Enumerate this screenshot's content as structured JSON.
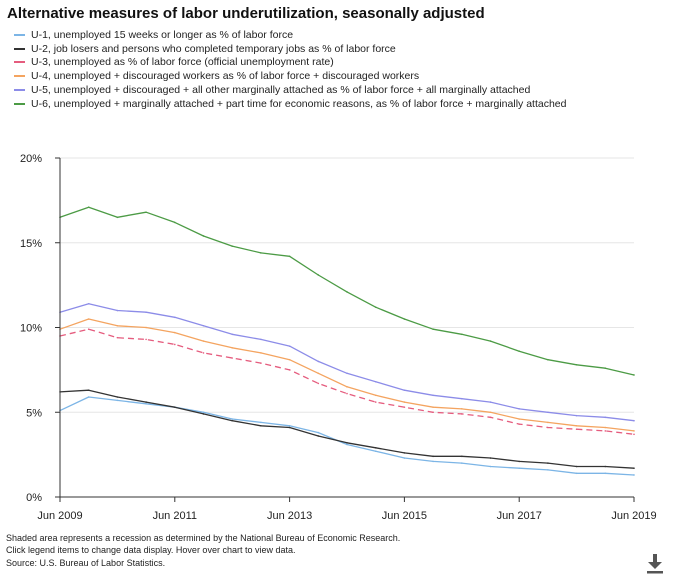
{
  "title": "Alternative measures of labor underutilization, seasonally adjusted",
  "legend": [
    {
      "name": "U-1, unemployed 15 weeks or longer as % of labor force",
      "color": "#7cb5e6",
      "dashed": false
    },
    {
      "name": "U-2, job losers and persons who completed temporary jobs as % of labor force",
      "color": "#333333",
      "dashed": false
    },
    {
      "name": "U-3, unemployed as % of labor force (official unemployment rate)",
      "color": "#e55c7e",
      "dashed": true
    },
    {
      "name": "U-4, unemployed + discouraged workers as % of labor force + discouraged workers",
      "color": "#f4a460",
      "dashed": false
    },
    {
      "name": "U-5, unemployed + discouraged + all other marginally attached as % of labor force + all marginally attached",
      "color": "#8c8ce8",
      "dashed": false
    },
    {
      "name": "U-6, unemployed + marginally attached + part time for economic reasons, as % of labor force + marginally attached",
      "color": "#4c9b45",
      "dashed": false
    }
  ],
  "chart_data": {
    "type": "line",
    "title": "Alternative measures of labor underutilization, seasonally adjusted",
    "x_range": [
      "Jun 2009",
      "Jun 2019"
    ],
    "x_ticks": [
      "Jun 2009",
      "Jun 2011",
      "Jun 2013",
      "Jun 2015",
      "Jun 2017",
      "Jun 2019"
    ],
    "y_ticks": [
      "0%",
      "5%",
      "10%",
      "15%",
      "20%"
    ],
    "ylim": [
      0,
      20
    ],
    "x": [
      "2009-06",
      "2009-12",
      "2010-06",
      "2010-12",
      "2011-06",
      "2011-12",
      "2012-06",
      "2012-12",
      "2013-06",
      "2013-12",
      "2014-06",
      "2014-12",
      "2015-06",
      "2015-12",
      "2016-06",
      "2016-12",
      "2017-06",
      "2017-12",
      "2018-06",
      "2018-12",
      "2019-06"
    ],
    "series": [
      {
        "name": "U-1",
        "values": [
          5.1,
          5.9,
          5.7,
          5.5,
          5.3,
          5.0,
          4.6,
          4.4,
          4.2,
          3.8,
          3.1,
          2.7,
          2.3,
          2.1,
          2.0,
          1.8,
          1.7,
          1.6,
          1.4,
          1.4,
          1.3
        ]
      },
      {
        "name": "U-2",
        "values": [
          6.2,
          6.3,
          5.9,
          5.6,
          5.3,
          4.9,
          4.5,
          4.2,
          4.1,
          3.6,
          3.2,
          2.9,
          2.6,
          2.4,
          2.4,
          2.3,
          2.1,
          2.0,
          1.8,
          1.8,
          1.7
        ]
      },
      {
        "name": "U-3",
        "values": [
          9.5,
          9.9,
          9.4,
          9.3,
          9.0,
          8.5,
          8.2,
          7.9,
          7.5,
          6.7,
          6.1,
          5.6,
          5.3,
          5.0,
          4.9,
          4.7,
          4.3,
          4.1,
          4.0,
          3.9,
          3.7
        ]
      },
      {
        "name": "U-4",
        "values": [
          9.9,
          10.5,
          10.1,
          10.0,
          9.7,
          9.2,
          8.8,
          8.5,
          8.1,
          7.3,
          6.5,
          6.0,
          5.6,
          5.3,
          5.2,
          5.0,
          4.6,
          4.4,
          4.2,
          4.1,
          3.9
        ]
      },
      {
        "name": "U-5",
        "values": [
          10.9,
          11.4,
          11.0,
          10.9,
          10.6,
          10.1,
          9.6,
          9.3,
          8.9,
          8.0,
          7.3,
          6.8,
          6.3,
          6.0,
          5.8,
          5.6,
          5.2,
          5.0,
          4.8,
          4.7,
          4.5
        ]
      },
      {
        "name": "U-6",
        "values": [
          16.5,
          17.1,
          16.5,
          16.8,
          16.2,
          15.4,
          14.8,
          14.4,
          14.2,
          13.1,
          12.1,
          11.2,
          10.5,
          9.9,
          9.6,
          9.2,
          8.6,
          8.1,
          7.8,
          7.6,
          7.2
        ]
      }
    ]
  },
  "footnotes": [
    "Shaded area represents a recession as determined by the National Bureau of Economic Research.",
    "Click legend items to change data display. Hover over chart to view data.",
    "Source: U.S. Bureau of Labor Statistics."
  ],
  "download_icon": "download-arrow-icon"
}
